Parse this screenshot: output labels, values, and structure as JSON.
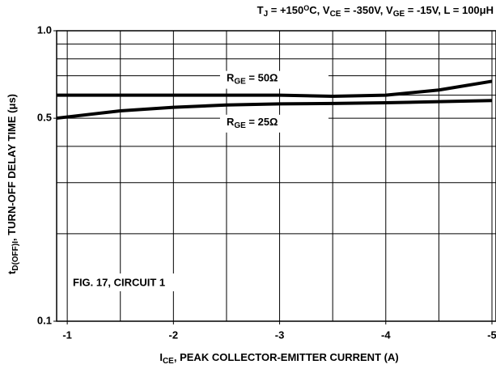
{
  "chart_data": {
    "type": "line",
    "title": [
      {
        "t": "T"
      },
      {
        "t": "J",
        "s": "sub"
      },
      {
        "t": " = +150"
      },
      {
        "t": "O",
        "s": "sup"
      },
      {
        "t": "C, V"
      },
      {
        "t": "CE",
        "s": "sub"
      },
      {
        "t": " = -350V, V"
      },
      {
        "t": "GE",
        "s": "sub"
      },
      {
        "t": " = -15V, L = 100μH"
      }
    ],
    "xlabel": [
      {
        "t": "I"
      },
      {
        "t": "CE",
        "s": "sub"
      },
      {
        "t": ",  PEAK COLLECTOR-EMITTER CURRENT (A)"
      }
    ],
    "ylabel": [
      {
        "t": "t"
      },
      {
        "t": "D(OFF)I",
        "s": "sub"
      },
      {
        "t": ",  TURN-OFF DELAY TIME (μs)"
      }
    ],
    "annotation": "FIG. 17, CIRCUIT 1",
    "x": [
      -0.9,
      -1.5,
      -2,
      -2.5,
      -3,
      -3.5,
      -4,
      -4.5,
      -5
    ],
    "series": [
      {
        "name": [
          {
            "t": "R"
          },
          {
            "t": "GE",
            "s": "sub"
          },
          {
            "t": " = 50Ω"
          }
        ],
        "color": "#000000",
        "values": [
          0.6,
          0.6,
          0.6,
          0.6,
          0.6,
          0.595,
          0.6,
          0.625,
          0.67
        ]
      },
      {
        "name": [
          {
            "t": "R"
          },
          {
            "t": "GE",
            "s": "sub"
          },
          {
            "t": " = 25Ω"
          }
        ],
        "color": "#000000",
        "values": [
          0.5,
          0.53,
          0.545,
          0.555,
          0.56,
          0.562,
          0.565,
          0.57,
          0.575
        ]
      }
    ],
    "xlim": [
      -0.9,
      -5
    ],
    "xticks": [
      -1,
      -2,
      -3,
      -4,
      -5
    ],
    "xminor": [
      -1.5,
      -2.5,
      -3.5,
      -4.5
    ],
    "ylim": [
      0.1,
      1.0
    ],
    "yticks": [
      0.1,
      0.5,
      {
        "value": 1.0,
        "label": "1.0"
      }
    ],
    "yminor": [
      0.2,
      0.3,
      0.4,
      0.6,
      0.7,
      0.8,
      0.9
    ],
    "ylog": true,
    "grid": true
  }
}
